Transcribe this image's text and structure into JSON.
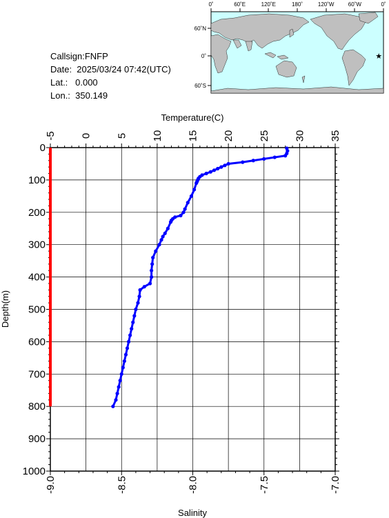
{
  "info": {
    "callsign": "Callsign:FNFP",
    "date": "Date:  2025/03/24 07:42(UTC)",
    "lat": "Lat.:   0.000",
    "lon": "Lon.:  350.149"
  },
  "map": {
    "top_labels": [
      "0˚",
      "60˚E",
      "120˚E",
      "180˚",
      "120˚W",
      "60˚W",
      "0˚"
    ],
    "left_labels": [
      "60˚N",
      "0˚",
      "60˚S"
    ],
    "marker": {
      "lon": 350.149,
      "lat": 0.0
    },
    "ocean_color": "#ccffff",
    "land_color": "#bfbfbf",
    "marker_color": "#ff0000"
  },
  "chart_data": {
    "type": "line",
    "xlabel_top": "Temperature(C)",
    "xlabel_bottom": "Salinity",
    "ylabel": "Depth(m)",
    "temperature_ticks": [
      "-5",
      "0",
      "5",
      "10",
      "15",
      "20",
      "25",
      "30",
      "35"
    ],
    "salinity_ticks": [
      "-9.0",
      "-8.5",
      "-8.0",
      "-7.5",
      "-7.0"
    ],
    "depth_ticks": [
      "0",
      "100",
      "200",
      "300",
      "400",
      "500",
      "600",
      "700",
      "800",
      "900",
      "1000"
    ],
    "temperature_range": [
      -5,
      35
    ],
    "salinity_range": [
      -9.0,
      -7.0
    ],
    "depth_range": [
      0,
      1000
    ],
    "grid": true,
    "series": [
      {
        "color": "#0000ff",
        "axis": "temperature",
        "depth": [
          2,
          10,
          18,
          25,
          30,
          35,
          40,
          45,
          50,
          55,
          60,
          65,
          70,
          75,
          80,
          85,
          90,
          95,
          100,
          105,
          110,
          130,
          150,
          170,
          190,
          200,
          210,
          215,
          220,
          225,
          230,
          250,
          265,
          275,
          285,
          300,
          320,
          340,
          360,
          380,
          400,
          420,
          430,
          440,
          460,
          480,
          500,
          520,
          540,
          560,
          580,
          600,
          620,
          640,
          660,
          680,
          700,
          720,
          740,
          760,
          780,
          800
        ],
        "temperature": [
          28.2,
          28.3,
          28.2,
          28.0,
          26.5,
          25.0,
          23.5,
          22.0,
          20.0,
          19.5,
          19.0,
          18.5,
          18.0,
          17.5,
          16.9,
          16.3,
          16.0,
          15.8,
          15.7,
          15.6,
          15.5,
          15.2,
          14.8,
          14.3,
          13.9,
          13.7,
          13.3,
          12.5,
          12.2,
          12.0,
          11.9,
          11.5,
          11.1,
          10.8,
          10.6,
          10.3,
          9.8,
          9.4,
          9.3,
          9.2,
          9.2,
          9.0,
          8.2,
          7.6,
          7.5,
          7.3,
          7.0,
          6.8,
          6.6,
          6.4,
          6.2,
          6.0,
          5.8,
          5.6,
          5.4,
          5.2,
          5.0,
          4.8,
          4.6,
          4.4,
          4.2,
          3.8
        ]
      },
      {
        "color": "#ff0000",
        "axis": "salinity",
        "depth": [
          0,
          100,
          200,
          300,
          400,
          500,
          600,
          700,
          800
        ],
        "salinity": [
          -9.0,
          -9.0,
          -9.0,
          -9.0,
          -9.0,
          -9.0,
          -9.0,
          -9.0,
          -9.0
        ]
      }
    ]
  }
}
